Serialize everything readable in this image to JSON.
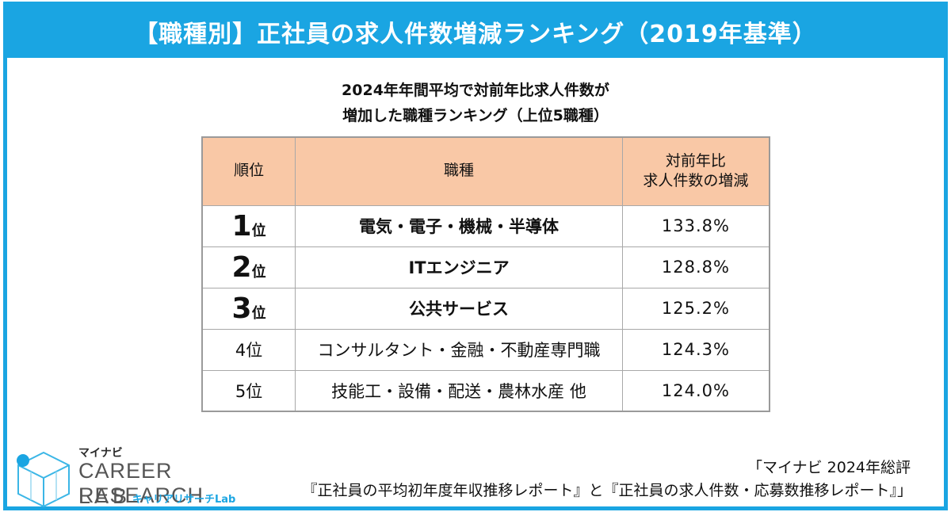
{
  "banner": {
    "title": "【職種別】正社員の求人件数増減ランキング（2019年基準）"
  },
  "subtitle": {
    "line1": "2024年年間平均で対前年比求人件数が",
    "line2": "増加した職種ランキング（上位5職種）"
  },
  "table": {
    "headers": {
      "rank": "順位",
      "job": "職種",
      "change_line1": "対前年比",
      "change_line2": "求人件数の増減"
    },
    "rows": [
      {
        "rank_num": "1",
        "rank_suffix": "位",
        "job": "電気・電子・機械・半導体",
        "change": "133.8%"
      },
      {
        "rank_num": "2",
        "rank_suffix": "位",
        "job": "ITエンジニア",
        "change": "128.8%"
      },
      {
        "rank_num": "3",
        "rank_suffix": "位",
        "job": "公共サービス",
        "change": "125.2%"
      },
      {
        "rank": "4位",
        "job": "コンサルタント・金融・不動産専門職",
        "change": "124.3%"
      },
      {
        "rank": "5位",
        "job": "技能工・設備・配送・農林水産 他",
        "change": "124.0%"
      }
    ]
  },
  "logo": {
    "brand": "マイナビ",
    "line1": "CAREER RESEARCH",
    "line2": "LAB",
    "kana": "キャリアリサーチLab",
    "icon": "cube-logo-icon"
  },
  "source": {
    "line1": "「マイナビ 2024年総評",
    "line2": "『正社員の平均初年度年収推移レポート』と『正社員の求人件数・応募数推移レポート』」"
  },
  "colors": {
    "accent": "#1aa5e2",
    "header_fill": "#f9c8a6"
  }
}
